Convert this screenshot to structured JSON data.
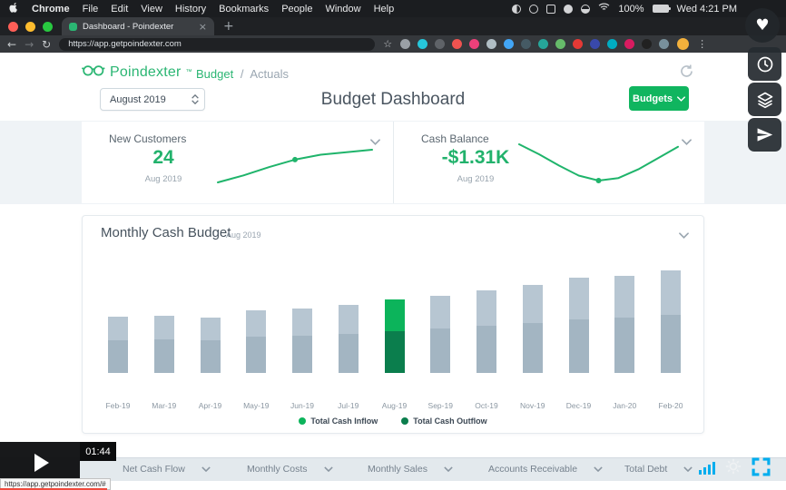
{
  "colors": {
    "brand_green": "#2bb673",
    "button_green": "#10b55f",
    "kpi_value_green": "#22b26c",
    "accent_blue": "#00adee",
    "bar_gray_top": "#b7c6d2",
    "bar_gray_bottom": "#a3b5c2"
  },
  "icons": {
    "back": "←",
    "forward": "→",
    "reload": "↻",
    "star": "☆",
    "overflow": "⋮",
    "close": "×",
    "new_tab": "+",
    "heart": "♥"
  },
  "menubar": {
    "items": [
      "Chrome",
      "File",
      "Edit",
      "View",
      "History",
      "Bookmarks",
      "People",
      "Window",
      "Help"
    ],
    "battery": "100%",
    "clock": "Wed 4:21 PM"
  },
  "browser": {
    "tab_title": "Dashboard - Poindexter",
    "url": "https://app.getpoindexter.com",
    "extensions": [
      "#9aa0a6",
      "#26c6da",
      "#5f6368",
      "#ef5350",
      "#ec407a",
      "#b0bec5",
      "#42a5f5",
      "#455a64",
      "#26a69a",
      "#66bb6a",
      "#e53935",
      "#3949ab",
      "#00acc1",
      "#d81b60",
      "#212121",
      "#78909c"
    ]
  },
  "app": {
    "brand": "Poindexter",
    "trademark": "™",
    "breadcrumb": {
      "section": "Budget",
      "separator": "/",
      "page": "Actuals"
    },
    "period": "August 2019",
    "title": "Budget Dashboard",
    "budgets_label": "Budgets",
    "kpis": [
      {
        "title": "New Customers",
        "value": "24",
        "period": "Aug 2019"
      },
      {
        "title": "Cash Balance",
        "value": "-$1.31K",
        "period": "Aug 2019"
      }
    ],
    "footer_metrics": [
      "Net Cash Flow",
      "Monthly Costs",
      "Monthly Sales",
      "Accounts Receivable",
      "Total Debt"
    ]
  },
  "chart_data": [
    {
      "type": "bar",
      "stacked": true,
      "title": "Monthly Cash Budget",
      "subtitle": "Aug 2019",
      "categories": [
        "Feb-19",
        "Mar-19",
        "Apr-19",
        "May-19",
        "Jun-19",
        "Jul-19",
        "Aug-19",
        "Sep-19",
        "Oct-19",
        "Nov-19",
        "Dec-19",
        "Jan-20",
        "Feb-20"
      ],
      "series": [
        {
          "name": "Total Cash Inflow",
          "color": "#0cb45b",
          "muted_color": "#b7c6d2",
          "values": [
            27,
            27,
            26,
            30,
            31,
            33,
            36,
            37,
            40,
            42,
            46,
            46,
            49
          ]
        },
        {
          "name": "Total Cash Outflow",
          "color": "#0b7e4d",
          "muted_color": "#a3b5c2",
          "values": [
            36,
            37,
            36,
            40,
            41,
            43,
            46,
            49,
            52,
            56,
            60,
            62,
            65
          ]
        }
      ],
      "highlight_category": "Aug-19",
      "units": "relative",
      "yaxis": "hidden",
      "grid": false,
      "legend_position": "bottom"
    },
    {
      "type": "line",
      "name": "New Customers trend",
      "color": "#1fb46b",
      "values": [
        13.5,
        15.2,
        17.2,
        19,
        20.2,
        20.8,
        21.4
      ],
      "marker_index": 3
    },
    {
      "type": "line",
      "name": "Cash Balance trend",
      "color": "#1fb46b",
      "values": [
        20,
        16,
        11.5,
        7.5,
        5.5,
        6.5,
        10,
        14.5,
        19
      ],
      "marker_index": 4
    }
  ],
  "player": {
    "timestamp": "01:44",
    "status_url": "https://app.getpoindexter.com/#"
  }
}
